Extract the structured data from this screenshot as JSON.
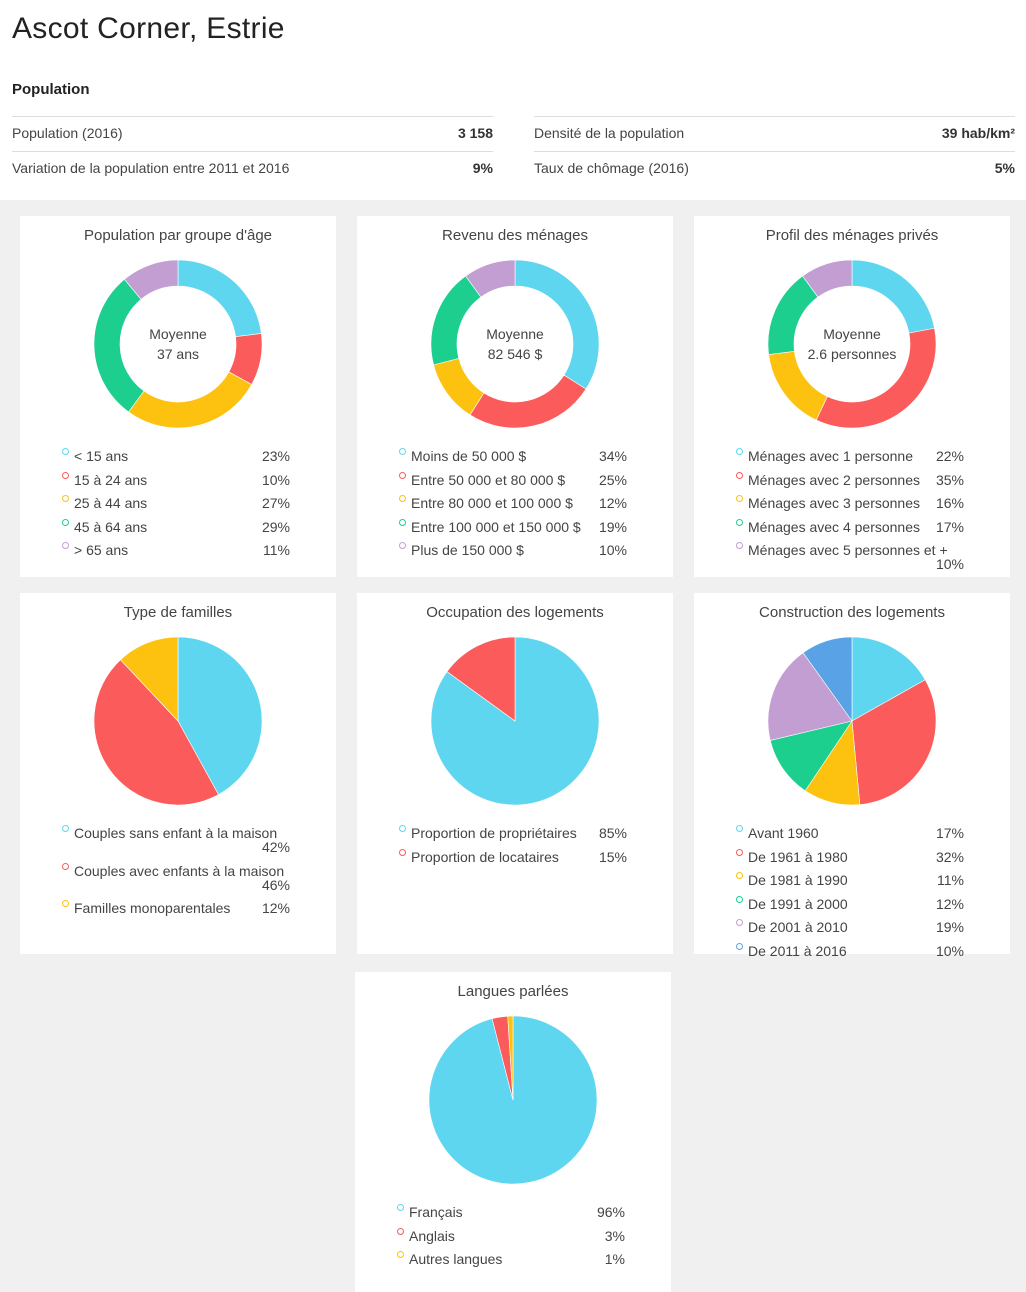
{
  "title": "Ascot Corner, Estrie",
  "section": "Population",
  "stats": [
    {
      "label": "Population (2016)",
      "value": "3 158"
    },
    {
      "label": "Densité de la population",
      "value": "39 hab/km²"
    },
    {
      "label": "Variation de la population entre 2011 et 2016",
      "value": "9%"
    },
    {
      "label": "Taux de chômage (2016)",
      "value": "5%"
    }
  ],
  "colors": [
    "#5fd6ef",
    "#fb5b5a",
    "#fdc20f",
    "#1ccf8e",
    "#c39ed2",
    "#5aa2e6"
  ],
  "chart_data": [
    {
      "type": "donut",
      "title": "Population par groupe d'âge",
      "center": [
        "Moyenne",
        "37 ans"
      ],
      "categories": [
        "< 15 ans",
        "15 à 24 ans",
        "25 à 44 ans",
        "45 à 64 ans",
        "> 65 ans"
      ],
      "values": [
        23,
        10,
        27,
        29,
        11
      ],
      "labels": [
        "23%",
        "10%",
        "27%",
        "29%",
        "11%"
      ]
    },
    {
      "type": "donut",
      "title": "Revenu des ménages",
      "center": [
        "Moyenne",
        "82 546 $"
      ],
      "categories": [
        "Moins de 50 000 $",
        "Entre 50 000 et 80 000 $",
        "Entre 80 000 et 100 000 $",
        "Entre 100 000 et 150 000 $",
        "Plus de 150 000 $"
      ],
      "values": [
        34,
        25,
        12,
        19,
        10
      ],
      "labels": [
        "34%",
        "25%",
        "12%",
        "19%",
        "10%"
      ]
    },
    {
      "type": "donut",
      "title": "Profil des ménages privés",
      "center": [
        "Moyenne",
        "2.6 personnes"
      ],
      "categories": [
        "Ménages avec 1 personne",
        "Ménages avec 2 personnes",
        "Ménages avec 3 personnes",
        "Ménages avec 4 personnes",
        "Ménages avec 5 personnes et +"
      ],
      "values": [
        22,
        35,
        16,
        17,
        10
      ],
      "labels": [
        "22%",
        "35%",
        "16%",
        "17%",
        "10%"
      ]
    },
    {
      "type": "pie",
      "title": "Type de familles",
      "categories": [
        "Couples sans enfant à la maison",
        "Couples avec enfants à la maison",
        "Familles monoparentales"
      ],
      "values": [
        42,
        46,
        12
      ],
      "labels": [
        "42%",
        "46%",
        "12%"
      ]
    },
    {
      "type": "pie",
      "title": "Occupation des logements",
      "categories": [
        "Proportion de propriétaires",
        "Proportion de locataires"
      ],
      "values": [
        85,
        15
      ],
      "labels": [
        "85%",
        "15%"
      ]
    },
    {
      "type": "pie",
      "title": "Construction des logements",
      "categories": [
        "Avant 1960",
        "De 1961 à 1980",
        "De 1981 à 1990",
        "De 1991 à 2000",
        "De 2001 à 2010",
        "De 2011 à 2016"
      ],
      "values": [
        17,
        32,
        11,
        12,
        19,
        10
      ],
      "labels": [
        "17%",
        "32%",
        "11%",
        "12%",
        "19%",
        "10%"
      ]
    },
    {
      "type": "pie",
      "title": "Langues parlées",
      "categories": [
        "Français",
        "Anglais",
        "Autres langues"
      ],
      "values": [
        96,
        3,
        1
      ],
      "labels": [
        "96%",
        "3%",
        "1%"
      ]
    }
  ]
}
